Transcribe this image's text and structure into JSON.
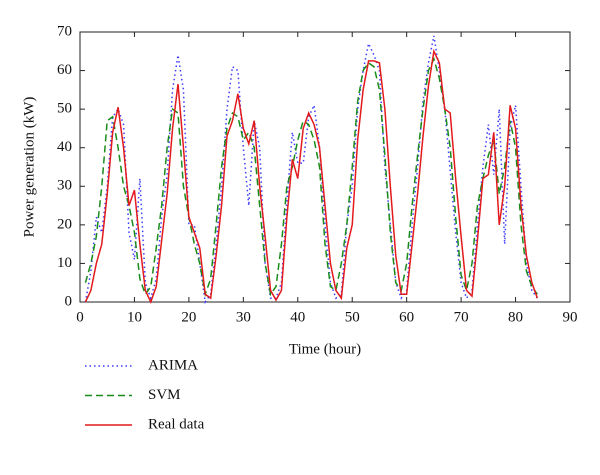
{
  "chart_data": {
    "type": "line",
    "xlabel": "Time (hour)",
    "ylabel": "Power generation (kW)",
    "x": [
      1,
      2,
      3,
      4,
      5,
      6,
      7,
      8,
      9,
      10,
      11,
      12,
      13,
      14,
      15,
      16,
      17,
      18,
      19,
      20,
      21,
      22,
      23,
      24,
      25,
      26,
      27,
      28,
      29,
      30,
      31,
      32,
      33,
      34,
      35,
      36,
      37,
      38,
      39,
      40,
      41,
      42,
      43,
      44,
      45,
      46,
      47,
      48,
      49,
      50,
      51,
      52,
      53,
      54,
      55,
      56,
      57,
      58,
      59,
      60,
      61,
      62,
      63,
      64,
      65,
      66,
      67,
      68,
      69,
      70,
      71,
      72,
      73,
      74,
      75,
      76,
      77,
      78,
      79,
      80,
      81,
      82,
      83,
      84
    ],
    "series": [
      {
        "name": "ARIMA",
        "color": "#3b3bff",
        "linestyle": "dotted",
        "values": [
          0,
          8,
          22,
          18,
          30,
          48,
          50,
          46,
          18,
          11,
          32,
          5,
          1,
          6,
          22,
          33,
          55,
          64,
          55,
          20,
          20,
          10,
          0,
          2,
          15,
          30,
          50,
          61,
          60,
          40,
          25,
          47,
          40,
          10,
          1,
          1,
          5,
          26,
          44,
          36,
          36,
          48,
          51,
          40,
          20,
          5,
          1,
          2,
          20,
          30,
          50,
          60,
          67,
          64,
          60,
          35,
          20,
          5,
          1,
          3,
          20,
          35,
          52,
          62,
          69,
          60,
          50,
          34,
          18,
          5,
          1,
          3,
          20,
          35,
          46,
          33,
          50,
          15,
          45,
          51,
          30,
          10,
          3,
          1
        ]
      },
      {
        "name": "SVM",
        "color": "#1a8c1a",
        "linestyle": "dashed",
        "values": [
          5,
          10,
          17,
          30,
          47,
          48,
          40,
          30,
          25,
          18,
          6,
          2,
          4,
          14,
          25,
          40,
          50,
          49,
          30,
          22,
          15,
          10,
          2,
          6,
          20,
          35,
          45,
          49,
          48,
          42,
          44,
          40,
          25,
          10,
          2,
          4,
          15,
          30,
          35,
          42,
          47,
          46,
          42,
          35,
          15,
          4,
          3,
          10,
          20,
          35,
          52,
          60,
          62,
          61,
          55,
          38,
          18,
          5,
          3,
          10,
          25,
          38,
          50,
          60,
          63,
          58,
          50,
          40,
          22,
          7,
          3,
          10,
          25,
          32,
          38,
          42,
          28,
          35,
          47,
          40,
          20,
          8,
          4,
          2
        ]
      },
      {
        "name": "Real data",
        "color": "#e31a1c",
        "linestyle": "solid",
        "values": [
          0,
          3,
          10,
          15,
          28,
          44,
          50.5,
          40,
          25,
          29,
          15,
          3,
          0,
          4,
          16,
          28,
          45,
          56.5,
          40,
          22,
          18,
          14,
          2,
          1,
          12,
          25,
          43,
          47,
          54,
          45,
          41,
          47,
          30,
          17,
          3,
          0.5,
          3,
          22,
          37,
          32,
          45,
          49,
          46,
          40,
          25,
          10,
          3,
          1,
          14,
          20,
          42,
          55,
          62.5,
          62.5,
          62,
          50,
          30,
          12,
          2,
          2,
          15,
          28,
          43,
          56,
          65,
          62,
          50,
          49,
          32,
          17,
          3,
          1.5,
          16,
          32,
          33,
          44,
          20,
          30,
          51,
          45,
          25,
          12,
          5,
          1
        ]
      }
    ],
    "xlim": [
      0,
      90
    ],
    "xticks": [
      0,
      10,
      20,
      30,
      40,
      50,
      60,
      70,
      80,
      90
    ],
    "ylim": [
      0,
      70
    ],
    "yticks": [
      0,
      10,
      20,
      30,
      40,
      50,
      60,
      70
    ],
    "legend": "below"
  }
}
